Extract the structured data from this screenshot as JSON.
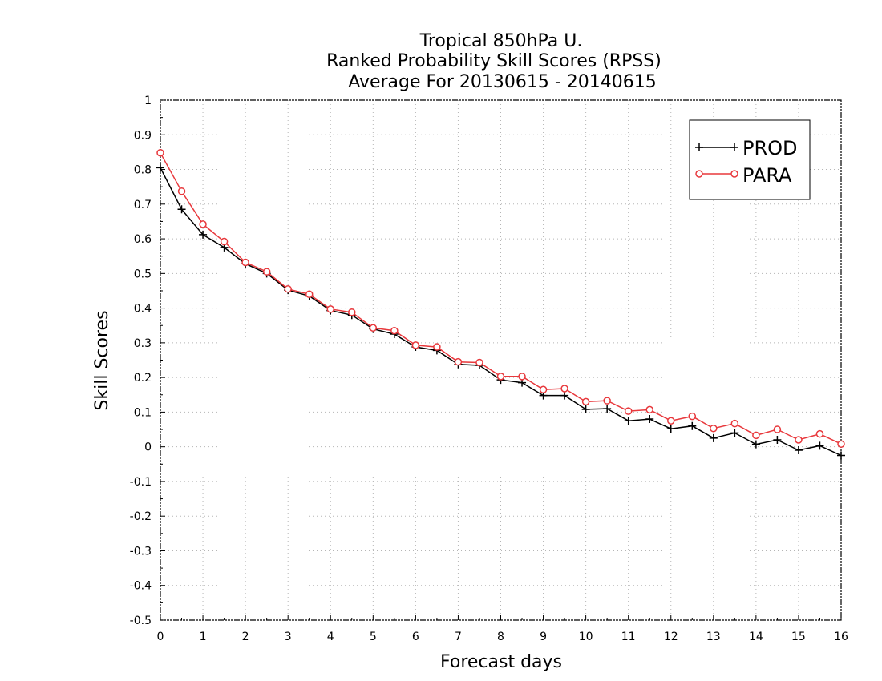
{
  "chart_data": {
    "type": "line",
    "title_lines": [
      "Tropical 850hPa U.",
      "Ranked Probability Skill Scores (RPSS)",
      " Average For 20130615 - 20140615"
    ],
    "xlabel": "Forecast days",
    "ylabel": "Skill Scores",
    "xlim": [
      0,
      16
    ],
    "ylim": [
      -0.5,
      1
    ],
    "xticks": [
      "0",
      "1",
      "2",
      "3",
      "4",
      "5",
      "6",
      "7",
      "8",
      "9",
      "10",
      "11",
      "12",
      "13",
      "14",
      "15",
      "16"
    ],
    "yticks": [
      "1",
      "0.9",
      "0.8",
      "0.7",
      "0.6",
      "0.5",
      "0.4",
      "0.3",
      "0.2",
      "0.1",
      "0",
      "-0.1",
      "-0.2",
      "-0.3",
      "-0.4",
      "-0.5"
    ],
    "grid": true,
    "legend_position": "top-right",
    "x": [
      0,
      0.5,
      1,
      1.5,
      2,
      2.5,
      3,
      3.5,
      4,
      4.5,
      5,
      5.5,
      6,
      6.5,
      7,
      7.5,
      8,
      8.5,
      9,
      9.5,
      10,
      10.5,
      11,
      11.5,
      12,
      12.5,
      13,
      13.5,
      14,
      14.5,
      15,
      15.5,
      16
    ],
    "series": [
      {
        "name": "PROD",
        "color": "#000000",
        "marker": "plus",
        "values": [
          0.805,
          0.685,
          0.612,
          0.575,
          0.528,
          0.5,
          0.452,
          0.435,
          0.393,
          0.38,
          0.34,
          0.325,
          0.288,
          0.278,
          0.238,
          0.235,
          0.193,
          0.185,
          0.148,
          0.148,
          0.108,
          0.11,
          0.075,
          0.08,
          0.052,
          0.06,
          0.025,
          0.04,
          0.007,
          0.02,
          -0.01,
          0.003,
          -0.025
        ]
      },
      {
        "name": "PARA",
        "color": "#e8383c",
        "marker": "circle",
        "values": [
          0.848,
          0.737,
          0.642,
          0.592,
          0.532,
          0.505,
          0.455,
          0.44,
          0.397,
          0.388,
          0.343,
          0.335,
          0.293,
          0.288,
          0.245,
          0.243,
          0.203,
          0.203,
          0.165,
          0.168,
          0.13,
          0.133,
          0.103,
          0.107,
          0.075,
          0.088,
          0.053,
          0.067,
          0.033,
          0.05,
          0.02,
          0.037,
          0.008
        ]
      }
    ]
  }
}
